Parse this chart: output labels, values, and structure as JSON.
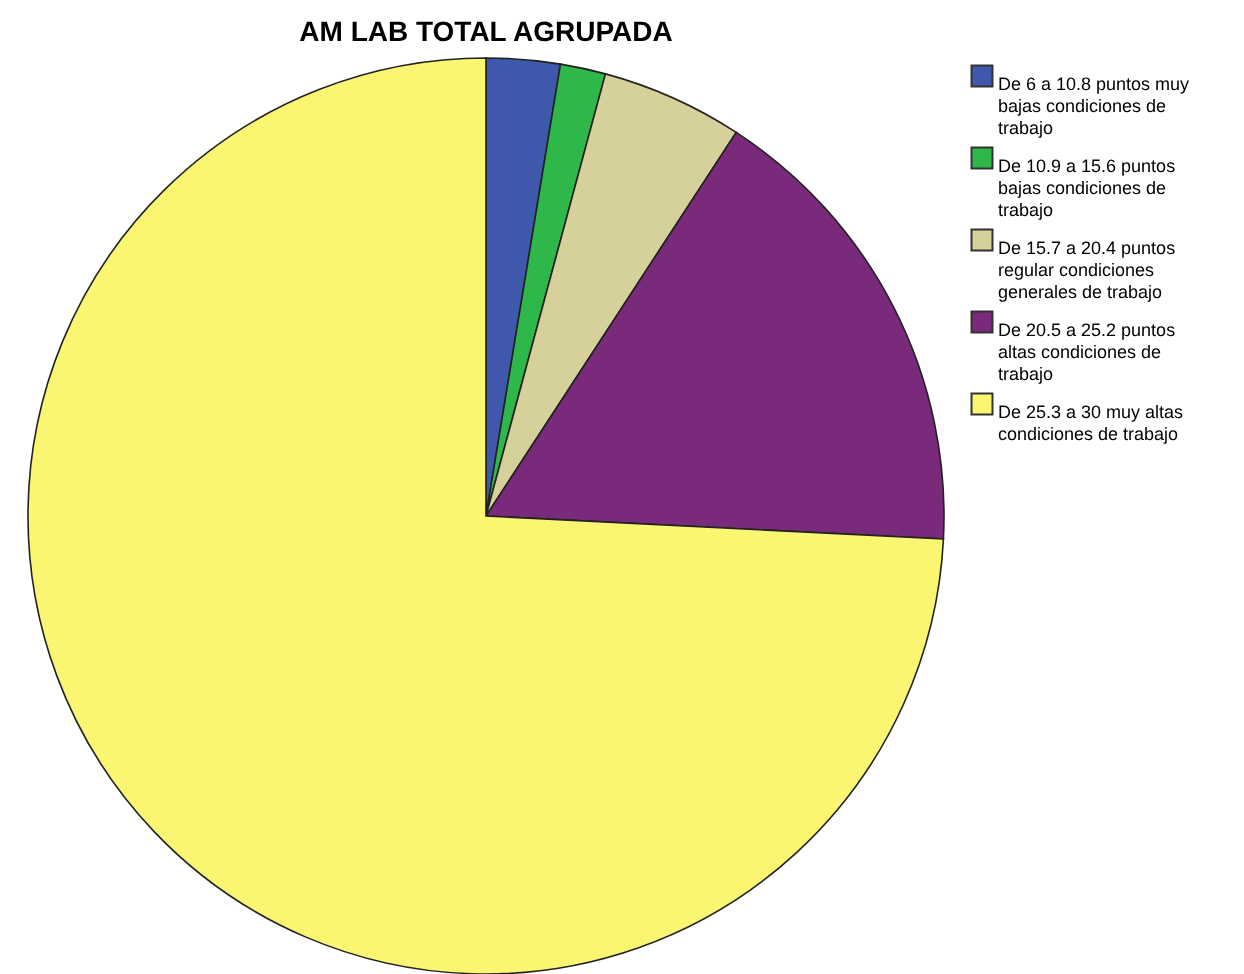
{
  "chart_data": {
    "type": "pie",
    "title": "AM LAB TOTAL AGRUPADA",
    "categories": [
      "De 6 a 10.8 puntos muy bajas condiciones de trabajo",
      "De 10.9 a 15.6 puntos bajas condiciones de trabajo",
      "De 15.7 a 20.4 puntos regular condiciones generales de trabajo",
      "De 20.5 a 25.2 puntos altas condiciones de trabajo",
      "De 25.3 a 30 muy altas condiciones de trabajo"
    ],
    "values": [
      2.6,
      1.6,
      5.0,
      16.6,
      74.2
    ],
    "colors": [
      "#3e58ac",
      "#2eb84a",
      "#d6d09a",
      "#792a7a",
      "#fbf672"
    ],
    "legend": "top right"
  }
}
